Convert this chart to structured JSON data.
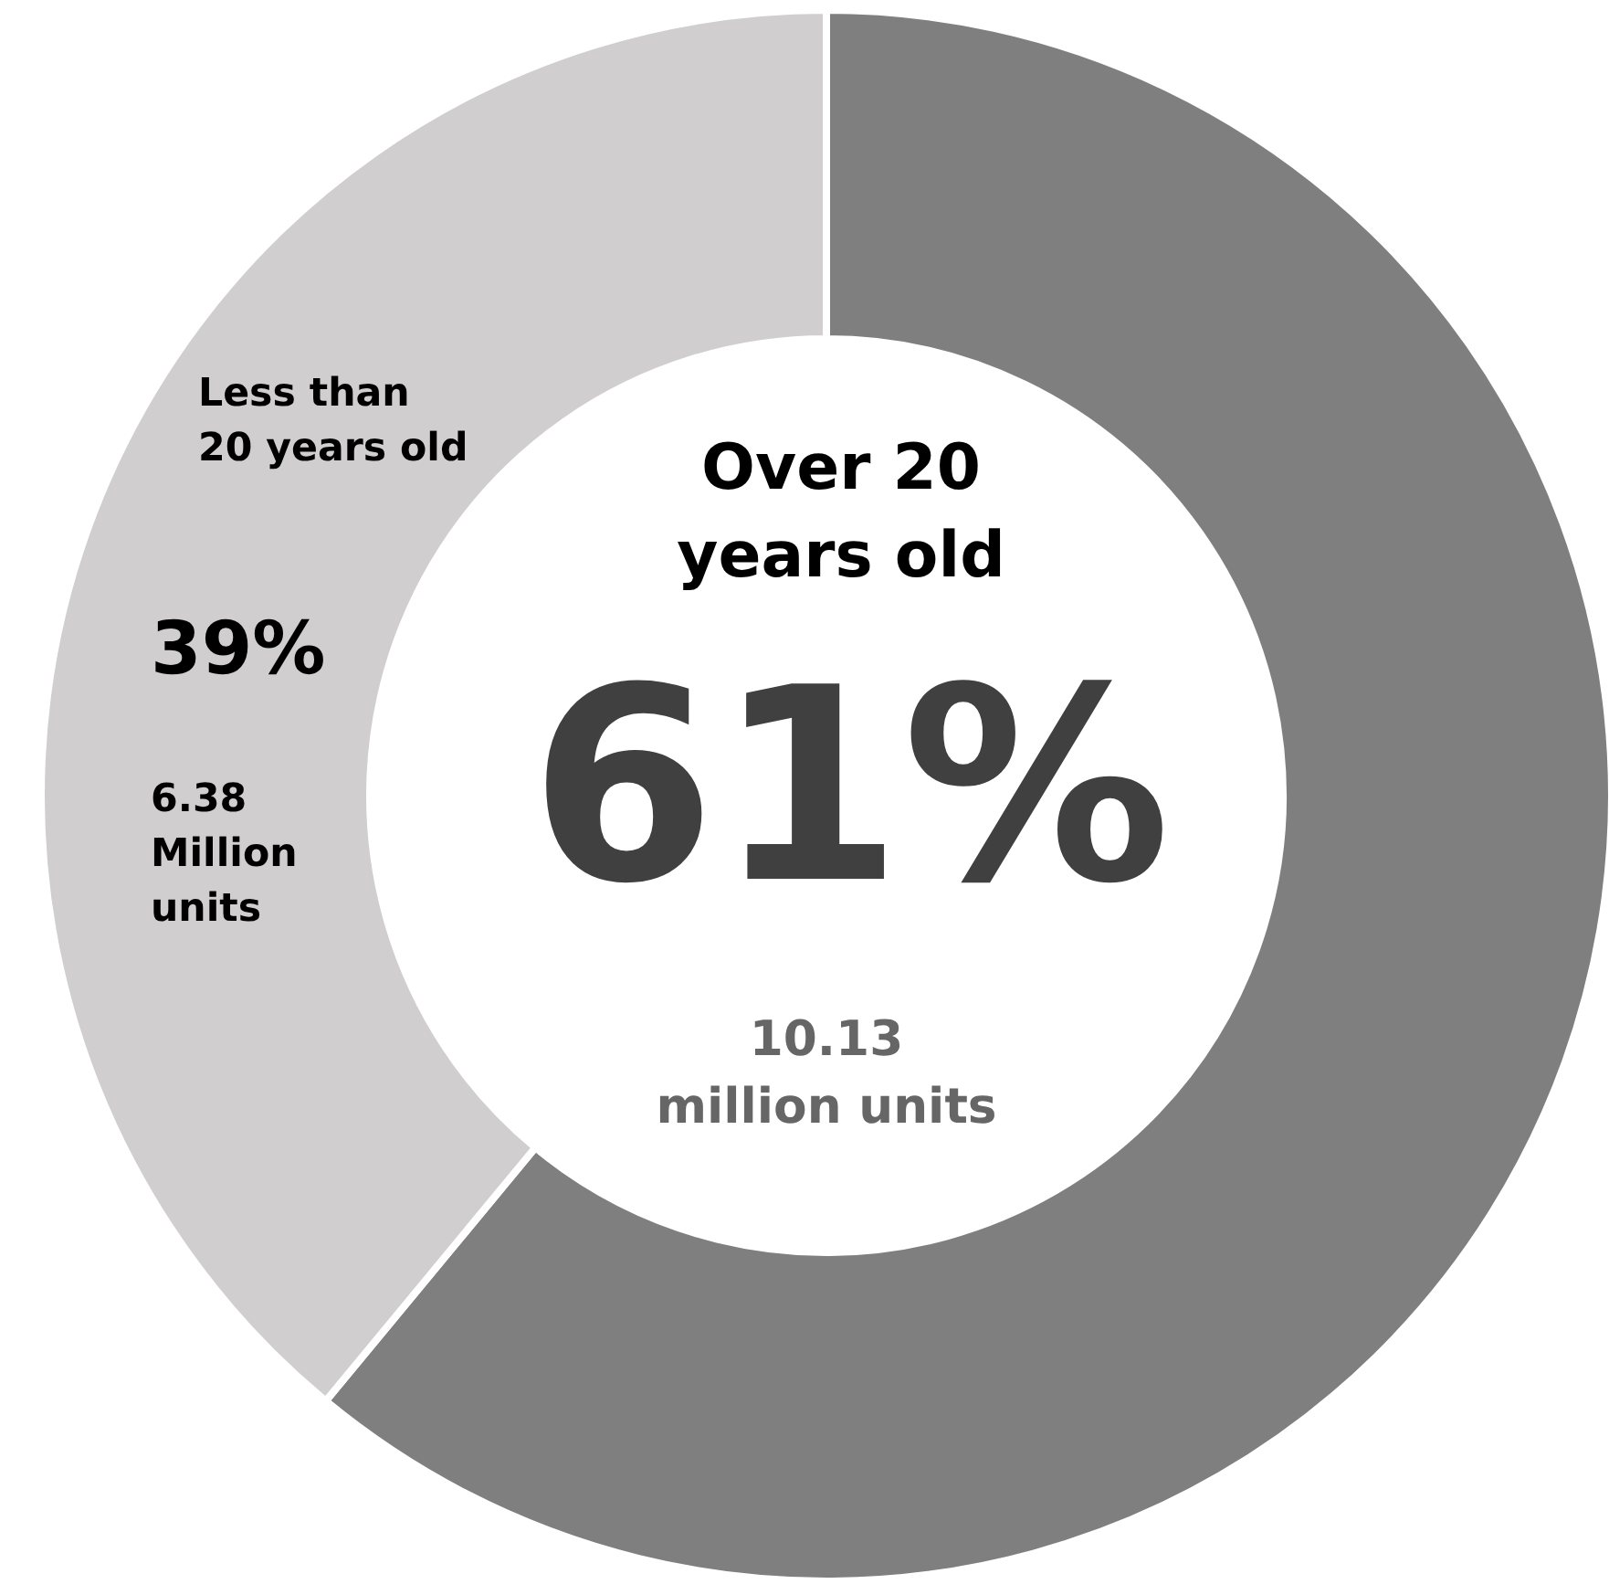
{
  "chart_data": {
    "type": "donut",
    "categories": [
      "Over 20\nyears old",
      "Less than\n20 years old"
    ],
    "values": [
      61,
      39
    ],
    "colors": [
      "#7f7f7f",
      "#d0cecf"
    ],
    "value_labels": [
      "61%",
      "39%"
    ],
    "annotations": [
      "10.13\nmillion units",
      "6.38\nMillion\nunits"
    ]
  }
}
